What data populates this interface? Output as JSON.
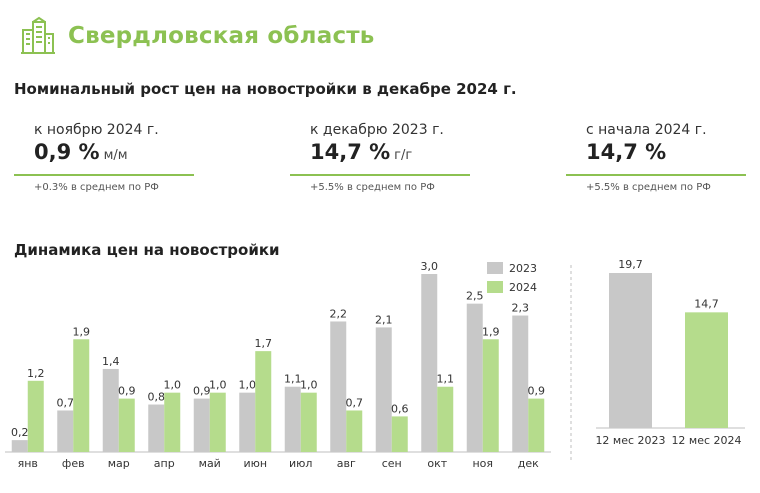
{
  "header": {
    "title": "Свердловская область"
  },
  "subtitle": "Номинальный рост цен на новостройки в декабре 2024 г.",
  "stats": [
    {
      "label": "к ноябрю 2024 г.",
      "value": "0,9 %",
      "unit": "м/м",
      "avg": "+0.3% в среднем по РФ"
    },
    {
      "label": "к декабрю 2023 г.",
      "value": "14,7 %",
      "unit": "г/г",
      "avg": "+5.5% в среднем по РФ"
    },
    {
      "label": "с начала 2024 г.",
      "value": "14,7 %",
      "unit": "",
      "avg": "+5.5% в среднем по РФ"
    }
  ],
  "dynamics_title": "Динамика цен на новостройки",
  "colors": {
    "gray": "#c8c8c8",
    "green": "#b5dc8c",
    "accent": "#8cc152"
  },
  "chart_data": [
    {
      "type": "bar",
      "title": "Динамика цен на новостройки",
      "categories": [
        "янв",
        "фев",
        "мар",
        "апр",
        "май",
        "июн",
        "июл",
        "авг",
        "сен",
        "окт",
        "ноя",
        "дек"
      ],
      "series": [
        {
          "name": "2023",
          "values": [
            0.2,
            0.7,
            1.4,
            0.8,
            0.9,
            1.0,
            1.1,
            2.2,
            2.1,
            3.0,
            2.5,
            2.3
          ],
          "labels": [
            "0,2",
            "0,7",
            "1,4",
            "0,8",
            "0,9",
            "1,0",
            "1,1",
            "2,2",
            "2,1",
            "3,0",
            "2,5",
            "2,3"
          ]
        },
        {
          "name": "2024",
          "values": [
            1.2,
            1.9,
            0.9,
            1.0,
            1.0,
            1.7,
            1.0,
            0.7,
            0.6,
            1.1,
            1.9,
            0.9
          ],
          "labels": [
            "1,2",
            "1,9",
            "0,9",
            "1,0",
            "1,0",
            "1,7",
            "1,0",
            "0,7",
            "0,6",
            "1,1",
            "1,9",
            "0,9"
          ]
        }
      ],
      "ylim": [
        0,
        3.0
      ],
      "legend": "top-right"
    },
    {
      "type": "bar",
      "categories": [
        "12 мес 2023",
        "12 мес 2024"
      ],
      "values": [
        19.7,
        14.7
      ],
      "labels": [
        "19,7",
        "14,7"
      ],
      "ylim": [
        0,
        19.7
      ]
    }
  ]
}
